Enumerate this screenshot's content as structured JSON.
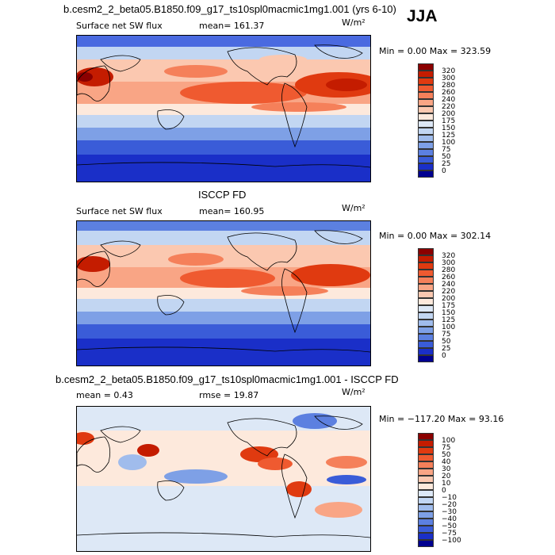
{
  "header": {
    "season": "JJA",
    "model_title": "b.cesm2_2_beta05.B1850.f09_g17_ts10spl0macmic1mg1.001 (yrs 6-10)"
  },
  "panels": [
    {
      "variable": "Surface net SW flux",
      "mean_text": "mean=  161.37",
      "units": "W/m²",
      "minmax": "Min =    0.00 Max = 323.59",
      "colorbar": {
        "labels": [
          "320",
          "300",
          "280",
          "260",
          "240",
          "220",
          "200",
          "175",
          "150",
          "125",
          "100",
          "75",
          "50",
          "25",
          "0"
        ],
        "colors": [
          "#8b0000",
          "#c41c00",
          "#e03a10",
          "#ef5a30",
          "#f5805a",
          "#f9a585",
          "#fbc8b0",
          "#fde9dc",
          "#dde8f6",
          "#c2d6f2",
          "#a0bcec",
          "#7ea0e6",
          "#5c80e0",
          "#3a5cd8",
          "#1a2fc8",
          "#000090"
        ]
      }
    },
    {
      "section_title": "ISCCP FD",
      "variable": "Surface net SW flux",
      "mean_text": "mean=  160.95",
      "units": "W/m²",
      "minmax": "Min =    0.00 Max = 302.14",
      "colorbar": {
        "labels": [
          "320",
          "300",
          "280",
          "260",
          "240",
          "220",
          "200",
          "175",
          "150",
          "125",
          "100",
          "75",
          "50",
          "25",
          "0"
        ],
        "colors": [
          "#8b0000",
          "#c41c00",
          "#e03a10",
          "#ef5a30",
          "#f5805a",
          "#f9a585",
          "#fbc8b0",
          "#fde9dc",
          "#dde8f6",
          "#c2d6f2",
          "#a0bcec",
          "#7ea0e6",
          "#5c80e0",
          "#3a5cd8",
          "#1a2fc8",
          "#000090"
        ]
      }
    },
    {
      "section_title": "b.cesm2_2_beta05.B1850.f09_g17_ts10spl0macmic1mg1.001 - ISCCP FD",
      "mean_text": "mean =    0.43",
      "rmse_text": "rmse =   19.87",
      "units": "W/m²",
      "minmax": "Min = −117.20 Max =  93.16",
      "colorbar": {
        "labels": [
          "100",
          "75",
          "50",
          "40",
          "30",
          "20",
          "10",
          "0",
          "−10",
          "−20",
          "−30",
          "−40",
          "−50",
          "−75",
          "−100"
        ],
        "colors": [
          "#8b0000",
          "#c41c00",
          "#e03a10",
          "#ef5a30",
          "#f5805a",
          "#f9a585",
          "#fbc8b0",
          "#fde9dc",
          "#dde8f6",
          "#c2d6f2",
          "#a0bcec",
          "#7ea0e6",
          "#5c80e0",
          "#3a5cd8",
          "#1a2fc8",
          "#000090"
        ]
      }
    }
  ]
}
